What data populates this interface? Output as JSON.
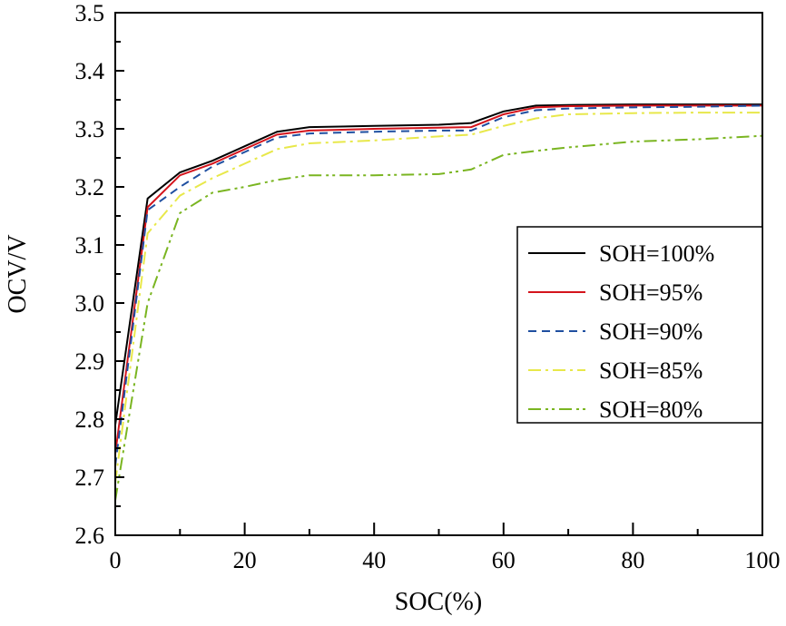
{
  "chart_data": {
    "type": "line",
    "title": "",
    "xlabel": "SOC(%)",
    "ylabel": "OCV/V",
    "xlim": [
      0,
      100
    ],
    "ylim": [
      2.6,
      3.5
    ],
    "xticks": [
      0,
      20,
      40,
      60,
      80,
      100
    ],
    "xtick_labels": [
      "0",
      "20",
      "40",
      "60",
      "80",
      "100"
    ],
    "yticks": [
      2.6,
      2.7,
      2.8,
      2.9,
      3.0,
      3.1,
      3.2,
      3.3,
      3.4,
      3.5
    ],
    "ytick_labels": [
      "2.6",
      "2.7",
      "2.8",
      "2.9",
      "3.0",
      "3.1",
      "3.2",
      "3.3",
      "3.4",
      "3.5"
    ],
    "grid": false,
    "legend_position": "center-right",
    "x": [
      0,
      5,
      10,
      15,
      20,
      25,
      30,
      40,
      50,
      55,
      60,
      65,
      70,
      80,
      90,
      100
    ],
    "series": [
      {
        "name": "SOH=100%",
        "color": "#000000",
        "dash": "",
        "values": [
          2.79,
          3.18,
          3.225,
          3.245,
          3.27,
          3.295,
          3.303,
          3.305,
          3.307,
          3.31,
          3.33,
          3.34,
          3.341,
          3.342,
          3.342,
          3.342
        ]
      },
      {
        "name": "SOH=95%",
        "color": "#d4141c",
        "dash": "",
        "values": [
          2.74,
          3.165,
          3.22,
          3.24,
          3.265,
          3.29,
          3.297,
          3.3,
          3.302,
          3.303,
          3.325,
          3.337,
          3.339,
          3.34,
          3.34,
          3.34
        ]
      },
      {
        "name": "SOH=90%",
        "color": "#1f4fa0",
        "dash": "9,6",
        "values": [
          2.72,
          3.16,
          3.2,
          3.235,
          3.26,
          3.285,
          3.292,
          3.295,
          3.297,
          3.297,
          3.32,
          3.332,
          3.335,
          3.337,
          3.338,
          3.34
        ]
      },
      {
        "name": "SOH=85%",
        "color": "#e8e84a",
        "dash": "14,5,3,5",
        "values": [
          2.69,
          3.12,
          3.185,
          3.215,
          3.24,
          3.265,
          3.275,
          3.28,
          3.287,
          3.29,
          3.305,
          3.318,
          3.325,
          3.327,
          3.328,
          3.328
        ]
      },
      {
        "name": "SOH=80%",
        "color": "#7ab521",
        "dash": "14,5,3,4,3,5",
        "values": [
          2.66,
          3.0,
          3.155,
          3.19,
          3.2,
          3.212,
          3.22,
          3.22,
          3.222,
          3.23,
          3.255,
          3.262,
          3.268,
          3.278,
          3.282,
          3.288
        ]
      }
    ]
  }
}
